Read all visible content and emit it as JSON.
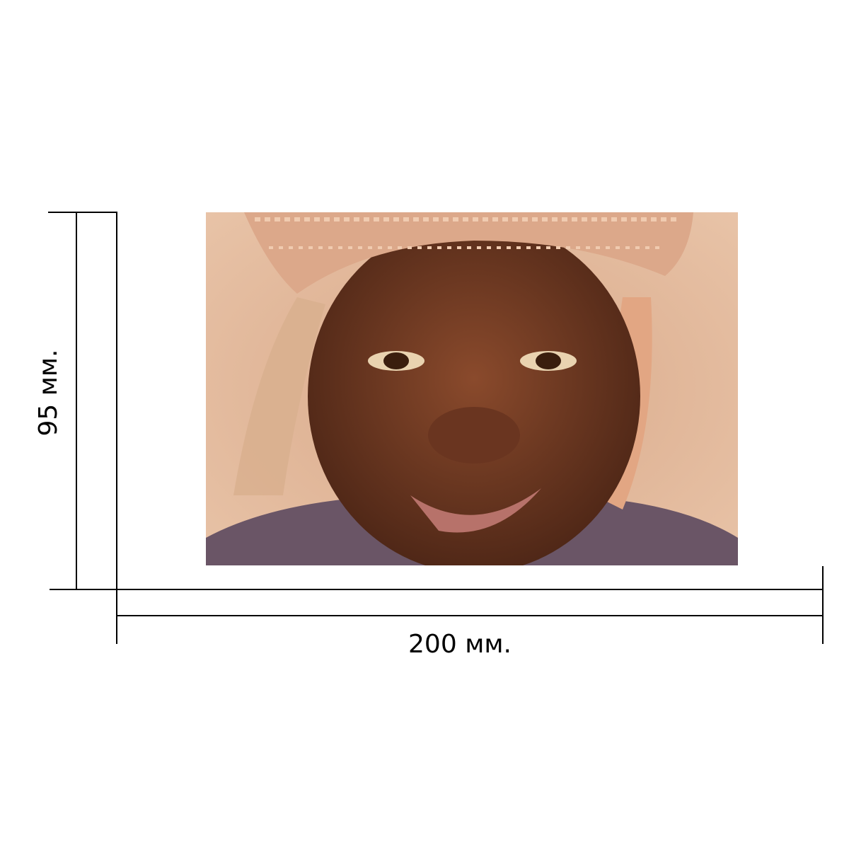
{
  "dimensions": {
    "height": {
      "label": "95 мм."
    },
    "width": {
      "label": "200 мм."
    }
  }
}
